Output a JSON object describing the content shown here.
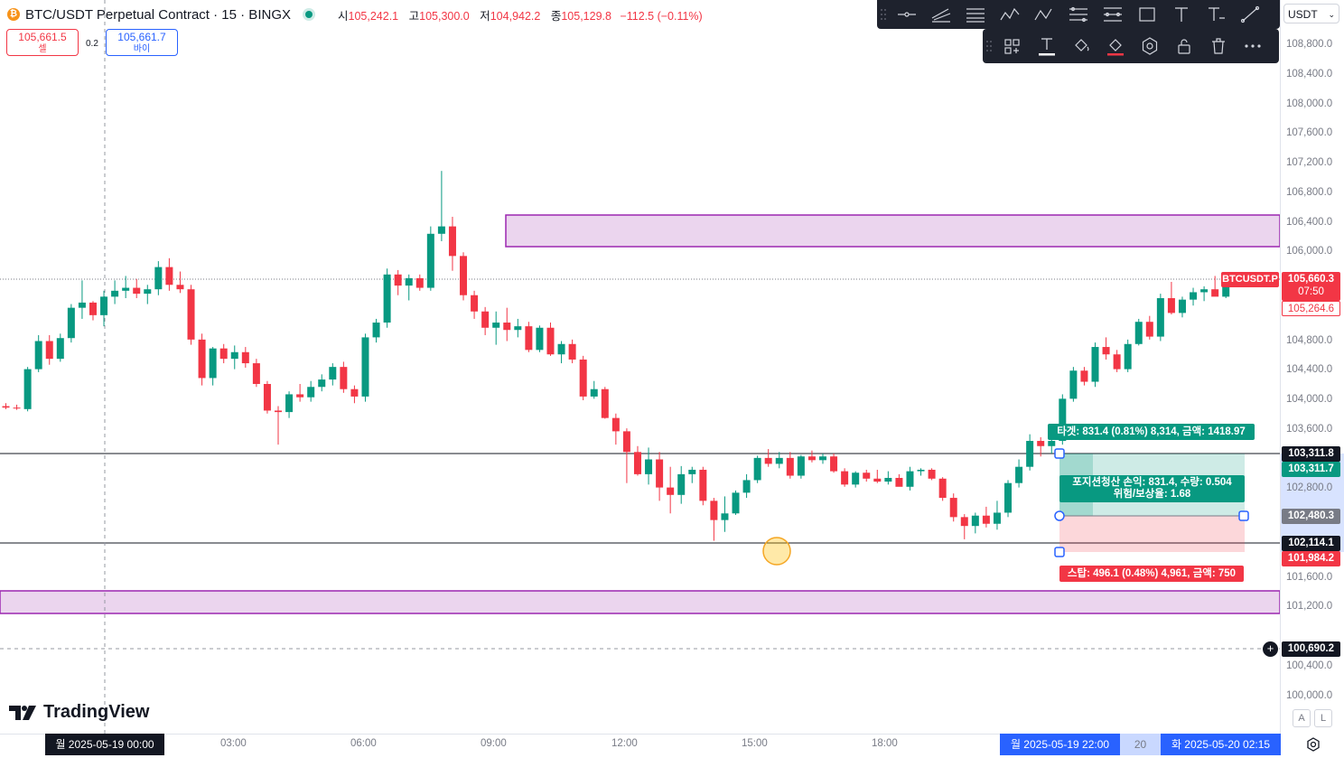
{
  "legend": {
    "symbol": "BTC/USDT Perpetual Contract · 15 · BINGX",
    "logo_glyph": "₿",
    "open_label": "시",
    "open": "105,242.1",
    "high_label": "고",
    "high": "105,300.0",
    "low_label": "저",
    "low": "104,942.2",
    "close_label": "종",
    "close": "105,129.8",
    "change": "−112.5 (−0.11%)"
  },
  "trade": {
    "sell_price": "105,661.5",
    "sell_label": "셀",
    "spread": "0.2",
    "buy_price": "105,661.7",
    "buy_label": "바이"
  },
  "toolbar": {
    "top_icons": [
      "horizontal-line-icon",
      "trend-channel-icon",
      "parallel-lines-icon",
      "wave-pattern-icon",
      "abcd-pattern-icon",
      "date-range-icon",
      "price-range-icon",
      "rectangle-icon",
      "text-icon",
      "text-note-icon",
      "line-icon"
    ],
    "bottom_icons": [
      "templates-icon",
      "text-tool-icon",
      "fill-color-icon",
      "border-color-icon",
      "settings-icon",
      "lock-icon",
      "trash-icon",
      "more-icon"
    ]
  },
  "currency_select": "USDT",
  "price_axis": {
    "ticks": [
      "108,800.0",
      "108,400.0",
      "108,000.0",
      "107,600.0",
      "107,200.0",
      "106,800.0",
      "106,400.0",
      "106,000.0",
      "104,800.0",
      "104,400.0",
      "104,000.0",
      "103,600.0",
      "102,800.0",
      "101,600.0",
      "101,200.0",
      "100,400.0",
      "100,000.0"
    ],
    "symbol_tag": "BTCUSDT.P",
    "last_price": "105,660.3",
    "countdown": "07:50",
    "prev_price": "105,264.6",
    "target_line": "103,311.8",
    "target_price": "103,311.7",
    "entry_price": "102,480.3",
    "support_line": "102,114.1",
    "stop_price": "101,984.2",
    "crosshair_price": "100,690.2"
  },
  "position": {
    "target_text": "타겟: 831.4 (0.81%) 8,314, 금액: 1418.97",
    "pnl_line1": "포지션청산 손익: 831.4, 수량: 0.504",
    "pnl_line2": "위험/보상율: 1.68",
    "stop_text": "스탑: 496.1 (0.48%) 4,961, 금액: 750"
  },
  "time_axis": {
    "ticks": [
      "03:00",
      "06:00",
      "09:00",
      "12:00",
      "15:00",
      "18:00"
    ],
    "cursor_flag": "월 2025-05-19   00:00",
    "range_start": "월 2025-05-19   22:00",
    "range_mid": "20",
    "range_end": "화 2025-05-20   02:15"
  },
  "branding": {
    "name": "TradingView",
    "auto_btn": "A",
    "log_btn": "L"
  },
  "colors": {
    "up": "#089981",
    "down": "#f23645",
    "zone": "#ebd5ee",
    "zone_border": "#9c27b0"
  },
  "chart_data": {
    "type": "candlestick",
    "interval": "15",
    "ohlc": [
      [
        103920,
        103960,
        103880,
        103900
      ],
      [
        103900,
        103940,
        103870,
        103890
      ],
      [
        103880,
        104450,
        103850,
        104420
      ],
      [
        104420,
        104880,
        104380,
        104800
      ],
      [
        104800,
        104880,
        104480,
        104560
      ],
      [
        104560,
        104900,
        104520,
        104840
      ],
      [
        104840,
        105300,
        104780,
        105250
      ],
      [
        105250,
        105620,
        105100,
        105320
      ],
      [
        105320,
        105340,
        105080,
        105150
      ],
      [
        105150,
        105480,
        105000,
        105400
      ],
      [
        105400,
        105620,
        105300,
        105480
      ],
      [
        105480,
        105680,
        105380,
        105520
      ],
      [
        105520,
        105640,
        105380,
        105440
      ],
      [
        105440,
        105560,
        105300,
        105500
      ],
      [
        105500,
        105880,
        105420,
        105800
      ],
      [
        105800,
        105920,
        105480,
        105560
      ],
      [
        105560,
        105740,
        105450,
        105500
      ],
      [
        105500,
        105560,
        104750,
        104820
      ],
      [
        104820,
        104900,
        104200,
        104300
      ],
      [
        104300,
        104720,
        104200,
        104700
      ],
      [
        104700,
        104760,
        104500,
        104560
      ],
      [
        104560,
        104740,
        104420,
        104650
      ],
      [
        104650,
        104720,
        104440,
        104500
      ],
      [
        104500,
        104560,
        104180,
        104220
      ],
      [
        104220,
        104260,
        103820,
        103860
      ],
      [
        103860,
        103920,
        103400,
        103840
      ],
      [
        103840,
        104120,
        103760,
        104080
      ],
      [
        104080,
        104220,
        103980,
        104040
      ],
      [
        104040,
        104260,
        103980,
        104180
      ],
      [
        104180,
        104350,
        104120,
        104280
      ],
      [
        104280,
        104500,
        104200,
        104450
      ],
      [
        104450,
        104520,
        104100,
        104150
      ],
      [
        104150,
        104200,
        103960,
        104050
      ],
      [
        104050,
        104900,
        103980,
        104850
      ],
      [
        104850,
        105100,
        104780,
        105050
      ],
      [
        105050,
        105780,
        104980,
        105700
      ],
      [
        105700,
        105760,
        105420,
        105550
      ],
      [
        105550,
        105700,
        105350,
        105650
      ],
      [
        105650,
        105700,
        105480,
        105520
      ],
      [
        105520,
        106350,
        105480,
        106250
      ],
      [
        106250,
        107100,
        106150,
        106350
      ],
      [
        106350,
        106480,
        105750,
        105950
      ],
      [
        105950,
        106000,
        105350,
        105420
      ],
      [
        105420,
        105480,
        105100,
        105200
      ],
      [
        105200,
        105260,
        104880,
        104980
      ],
      [
        104980,
        105200,
        104750,
        105050
      ],
      [
        105050,
        105250,
        104800,
        104950
      ],
      [
        104950,
        105100,
        104850,
        105000
      ],
      [
        105000,
        105060,
        104650,
        104680
      ],
      [
        104680,
        105010,
        104650,
        104980
      ],
      [
        104980,
        105050,
        104600,
        104620
      ],
      [
        104620,
        104800,
        104500,
        104760
      ],
      [
        104760,
        104820,
        104500,
        104550
      ],
      [
        104550,
        104600,
        104000,
        104050
      ],
      [
        104050,
        104260,
        104020,
        104150
      ],
      [
        104150,
        104180,
        103750,
        103760
      ],
      [
        103760,
        103820,
        103400,
        103580
      ],
      [
        103580,
        103620,
        102880,
        103300
      ],
      [
        103300,
        103380,
        102980,
        103000
      ],
      [
        103000,
        103360,
        102860,
        103200
      ],
      [
        103200,
        103300,
        102640,
        102820
      ],
      [
        102820,
        103100,
        102470,
        102720
      ],
      [
        102720,
        103110,
        102600,
        103000
      ],
      [
        103000,
        103100,
        102880,
        103060
      ],
      [
        103060,
        103100,
        102580,
        102640
      ],
      [
        102640,
        102680,
        102100,
        102380
      ],
      [
        102380,
        102700,
        102220,
        102470
      ],
      [
        102470,
        102780,
        102450,
        102750
      ],
      [
        102750,
        103000,
        102680,
        102920
      ],
      [
        102920,
        103250,
        102880,
        103220
      ],
      [
        103220,
        103340,
        103100,
        103140
      ],
      [
        103140,
        103300,
        103080,
        103220
      ],
      [
        103220,
        103300,
        102940,
        102980
      ],
      [
        102980,
        103260,
        102940,
        103240
      ],
      [
        103240,
        103320,
        103160,
        103190
      ],
      [
        103190,
        103280,
        103140,
        103240
      ],
      [
        103240,
        103280,
        103020,
        103040
      ],
      [
        103040,
        103080,
        102830,
        102860
      ],
      [
        102860,
        103040,
        102820,
        103020
      ],
      [
        103020,
        103060,
        102900,
        102940
      ],
      [
        102940,
        103060,
        102880,
        102900
      ],
      [
        102900,
        103040,
        102860,
        102950
      ],
      [
        102950,
        103000,
        102860,
        102830
      ],
      [
        102830,
        103100,
        102780,
        103040
      ],
      [
        103040,
        103080,
        102980,
        103060
      ],
      [
        103060,
        103080,
        102920,
        102940
      ],
      [
        102940,
        102960,
        102640,
        102680
      ],
      [
        102680,
        102740,
        102360,
        102420
      ],
      [
        102420,
        102460,
        102120,
        102300
      ],
      [
        102300,
        102480,
        102200,
        102440
      ],
      [
        102440,
        102560,
        102280,
        102330
      ],
      [
        102330,
        102640,
        102250,
        102480
      ],
      [
        102480,
        102920,
        102420,
        102880
      ],
      [
        102880,
        103200,
        102820,
        103100
      ],
      [
        103100,
        103540,
        103050,
        103450
      ],
      [
        103450,
        103500,
        103240,
        103380
      ],
      [
        103380,
        103500,
        103280,
        103450
      ],
      [
        103450,
        104080,
        103400,
        104020
      ],
      [
        104020,
        104450,
        103980,
        104400
      ],
      [
        104400,
        104450,
        104200,
        104250
      ],
      [
        104250,
        104780,
        104180,
        104720
      ],
      [
        104720,
        104850,
        104550,
        104620
      ],
      [
        104620,
        104680,
        104380,
        104420
      ],
      [
        104420,
        104820,
        104380,
        104760
      ],
      [
        104760,
        105100,
        104740,
        105060
      ],
      [
        105060,
        105140,
        104820,
        104860
      ],
      [
        104860,
        105440,
        104800,
        105380
      ],
      [
        105380,
        105600,
        105160,
        105180
      ],
      [
        105180,
        105400,
        105120,
        105360
      ],
      [
        105360,
        105520,
        105280,
        105460
      ],
      [
        105460,
        105540,
        105340,
        105500
      ],
      [
        105500,
        105680,
        105420,
        105400
      ],
      [
        105400,
        105700,
        105380,
        105660
      ]
    ]
  }
}
